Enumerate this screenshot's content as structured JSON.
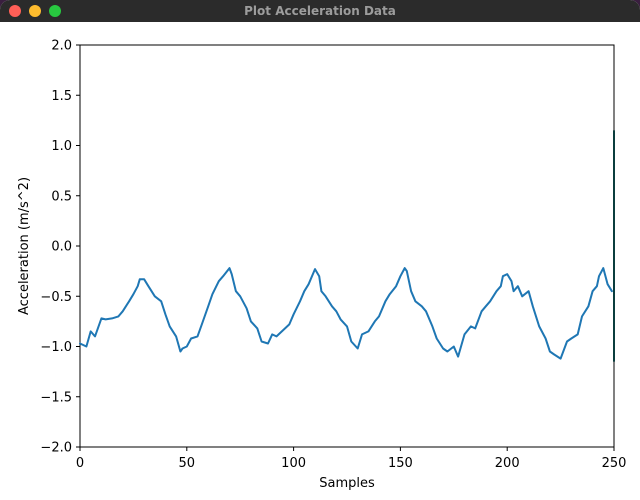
{
  "window": {
    "title": "Plot Acceleration Data",
    "buttons": [
      "close",
      "minimize",
      "maximize"
    ]
  },
  "chart_data": {
    "type": "line",
    "title": "",
    "xlabel": "Samples",
    "ylabel": "Acceleration (m/s^2)",
    "xlim": [
      0,
      250
    ],
    "ylim": [
      -2.0,
      2.0
    ],
    "xticks": [
      "0",
      "50",
      "100",
      "150",
      "200",
      "250"
    ],
    "yticks": [
      "2.0",
      "1.5",
      "1.0",
      "0.5",
      "0.0",
      "−0.5",
      "−1.0",
      "−1.5",
      "−2.0"
    ],
    "grid": false,
    "series": [
      {
        "name": "acceleration",
        "color": "#1f77b4",
        "x": [
          0,
          3,
          5,
          7,
          10,
          12,
          15,
          18,
          20,
          23,
          25,
          27,
          28,
          30,
          32,
          35,
          38,
          40,
          42,
          45,
          47,
          48,
          50,
          52,
          55,
          57,
          60,
          62,
          65,
          67,
          70,
          71,
          73,
          75,
          78,
          80,
          83,
          85,
          88,
          90,
          92,
          95,
          98,
          100,
          103,
          105,
          107,
          110,
          112,
          113,
          115,
          118,
          120,
          122,
          125,
          127,
          130,
          132,
          135,
          138,
          140,
          143,
          145,
          148,
          150,
          152,
          153,
          155,
          157,
          160,
          162,
          165,
          167,
          170,
          172,
          175,
          177,
          180,
          183,
          185,
          188,
          190,
          192,
          195,
          197,
          198,
          200,
          202,
          203,
          205,
          207,
          210,
          212,
          215,
          218,
          220,
          222,
          225,
          228,
          230,
          233,
          235,
          238,
          240,
          242,
          243,
          245,
          247,
          249
        ],
        "y": [
          -0.97,
          -1.0,
          -0.85,
          -0.9,
          -0.72,
          -0.73,
          -0.72,
          -0.7,
          -0.65,
          -0.55,
          -0.48,
          -0.4,
          -0.33,
          -0.33,
          -0.4,
          -0.5,
          -0.55,
          -0.68,
          -0.8,
          -0.9,
          -1.05,
          -1.02,
          -1.0,
          -0.92,
          -0.9,
          -0.78,
          -0.6,
          -0.48,
          -0.35,
          -0.3,
          -0.22,
          -0.28,
          -0.45,
          -0.5,
          -0.62,
          -0.75,
          -0.82,
          -0.95,
          -0.97,
          -0.88,
          -0.9,
          -0.84,
          -0.78,
          -0.68,
          -0.55,
          -0.45,
          -0.38,
          -0.23,
          -0.3,
          -0.45,
          -0.5,
          -0.6,
          -0.65,
          -0.73,
          -0.8,
          -0.95,
          -1.02,
          -0.88,
          -0.85,
          -0.75,
          -0.7,
          -0.55,
          -0.48,
          -0.4,
          -0.3,
          -0.22,
          -0.25,
          -0.45,
          -0.55,
          -0.6,
          -0.65,
          -0.8,
          -0.92,
          -1.02,
          -1.05,
          -1.0,
          -1.1,
          -0.88,
          -0.8,
          -0.82,
          -0.65,
          -0.6,
          -0.55,
          -0.45,
          -0.4,
          -0.3,
          -0.28,
          -0.35,
          -0.45,
          -0.4,
          -0.5,
          -0.45,
          -0.6,
          -0.8,
          -0.92,
          -1.05,
          -1.08,
          -1.12,
          -0.95,
          -0.92,
          -0.88,
          -0.7,
          -0.6,
          -0.45,
          -0.4,
          -0.3,
          -0.22,
          -0.38,
          -0.45
        ]
      }
    ],
    "vertical_marker": {
      "x": 250,
      "y_range": [
        -1.15,
        1.15
      ],
      "color": "#0b3d3d"
    }
  }
}
